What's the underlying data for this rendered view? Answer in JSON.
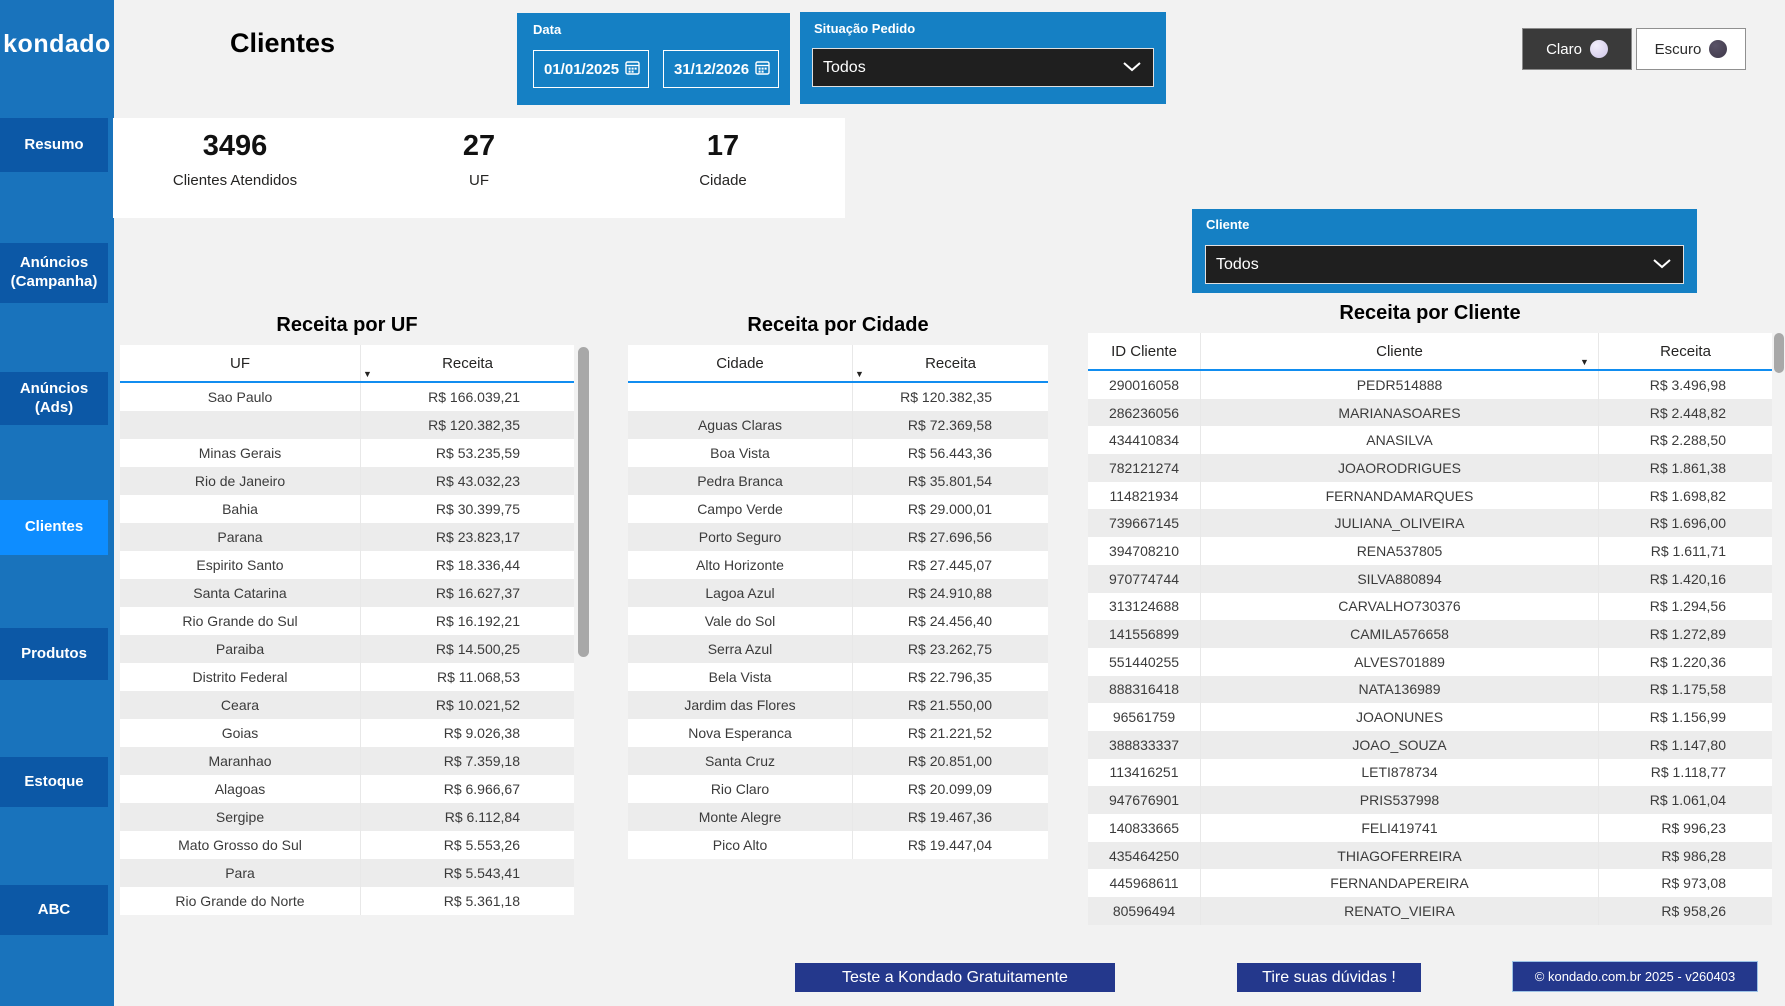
{
  "sidebar": {
    "logo": "kondado",
    "items": [
      {
        "label": "Resumo",
        "active": false
      },
      {
        "label": "Anúncios (Campanha)",
        "active": false
      },
      {
        "label": "Anúncios (Ads)",
        "active": false
      },
      {
        "label": "Clientes",
        "active": true
      },
      {
        "label": "Produtos",
        "active": false
      },
      {
        "label": "Estoque",
        "active": false
      },
      {
        "label": "ABC",
        "active": false
      }
    ]
  },
  "header": {
    "title": "Clientes"
  },
  "filters": {
    "data": {
      "label": "Data",
      "start": "01/01/2025",
      "end": "31/12/2026"
    },
    "situacao": {
      "label": "Situação Pedido",
      "value": "Todos"
    },
    "cliente": {
      "label": "Cliente",
      "value": "Todos"
    }
  },
  "theme": {
    "claro": "Claro",
    "escuro": "Escuro"
  },
  "kpis": [
    {
      "value": "3496",
      "label": "Clientes Atendidos"
    },
    {
      "value": "27",
      "label": "UF"
    },
    {
      "value": "17",
      "label": "Cidade"
    }
  ],
  "tables": {
    "uf": {
      "title": "Receita por UF",
      "columns": [
        "UF",
        "Receita"
      ],
      "rows": [
        [
          "Sao Paulo",
          "R$ 166.039,21"
        ],
        [
          "",
          "R$ 120.382,35"
        ],
        [
          "Minas Gerais",
          "R$ 53.235,59"
        ],
        [
          "Rio de Janeiro",
          "R$ 43.032,23"
        ],
        [
          "Bahia",
          "R$ 30.399,75"
        ],
        [
          "Parana",
          "R$ 23.823,17"
        ],
        [
          "Espirito Santo",
          "R$ 18.336,44"
        ],
        [
          "Santa Catarina",
          "R$ 16.627,37"
        ],
        [
          "Rio Grande do Sul",
          "R$ 16.192,21"
        ],
        [
          "Paraiba",
          "R$ 14.500,25"
        ],
        [
          "Distrito Federal",
          "R$ 11.068,53"
        ],
        [
          "Ceara",
          "R$ 10.021,52"
        ],
        [
          "Goias",
          "R$ 9.026,38"
        ],
        [
          "Maranhao",
          "R$ 7.359,18"
        ],
        [
          "Alagoas",
          "R$ 6.966,67"
        ],
        [
          "Sergipe",
          "R$ 6.112,84"
        ],
        [
          "Mato Grosso do Sul",
          "R$ 5.553,26"
        ],
        [
          "Para",
          "R$ 5.543,41"
        ],
        [
          "Rio Grande do Norte",
          "R$ 5.361,18"
        ]
      ]
    },
    "cidade": {
      "title": "Receita por Cidade",
      "columns": [
        "Cidade",
        "Receita"
      ],
      "rows": [
        [
          "",
          "R$ 120.382,35"
        ],
        [
          "Aguas Claras",
          "R$ 72.369,58"
        ],
        [
          "Boa Vista",
          "R$ 56.443,36"
        ],
        [
          "Pedra Branca",
          "R$ 35.801,54"
        ],
        [
          "Campo Verde",
          "R$ 29.000,01"
        ],
        [
          "Porto Seguro",
          "R$ 27.696,56"
        ],
        [
          "Alto Horizonte",
          "R$ 27.445,07"
        ],
        [
          "Lagoa Azul",
          "R$ 24.910,88"
        ],
        [
          "Vale do Sol",
          "R$ 24.456,40"
        ],
        [
          "Serra Azul",
          "R$ 23.262,75"
        ],
        [
          "Bela Vista",
          "R$ 22.796,35"
        ],
        [
          "Jardim das Flores",
          "R$ 21.550,00"
        ],
        [
          "Nova Esperanca",
          "R$ 21.221,52"
        ],
        [
          "Santa Cruz",
          "R$ 20.851,00"
        ],
        [
          "Rio Claro",
          "R$ 20.099,09"
        ],
        [
          "Monte Alegre",
          "R$ 19.467,36"
        ],
        [
          "Pico Alto",
          "R$ 19.447,04"
        ]
      ]
    },
    "cliente": {
      "title": "Receita por Cliente",
      "columns": [
        "ID Cliente",
        "Cliente",
        "Receita"
      ],
      "rows": [
        [
          "290016058",
          "PEDR514888",
          "R$ 3.496,98"
        ],
        [
          "286236056",
          "MARIANASOARES",
          "R$ 2.448,82"
        ],
        [
          "434410834",
          "ANASILVA",
          "R$ 2.288,50"
        ],
        [
          "782121274",
          "JOAORODRIGUES",
          "R$ 1.861,38"
        ],
        [
          "114821934",
          "FERNANDAMARQUES",
          "R$ 1.698,82"
        ],
        [
          "739667145",
          "JULIANA_OLIVEIRA",
          "R$ 1.696,00"
        ],
        [
          "394708210",
          "RENA537805",
          "R$ 1.611,71"
        ],
        [
          "970774744",
          "SILVA880894",
          "R$ 1.420,16"
        ],
        [
          "313124688",
          "CARVALHO730376",
          "R$ 1.294,56"
        ],
        [
          "141556899",
          "CAMILA576658",
          "R$ 1.272,89"
        ],
        [
          "551440255",
          "ALVES701889",
          "R$ 1.220,36"
        ],
        [
          "888316418",
          "NATA136989",
          "R$ 1.175,58"
        ],
        [
          "96561759",
          "JOAONUNES",
          "R$ 1.156,99"
        ],
        [
          "388833337",
          "JOAO_SOUZA",
          "R$ 1.147,80"
        ],
        [
          "113416251",
          "LETI878734",
          "R$ 1.118,77"
        ],
        [
          "947676901",
          "PRIS537998",
          "R$ 1.061,04"
        ],
        [
          "140833665",
          "FELI419741",
          "R$ 996,23"
        ],
        [
          "435464250",
          "THIAGOFERREIRA",
          "R$ 986,28"
        ],
        [
          "445968611",
          "FERNANDAPEREIRA",
          "R$ 973,08"
        ],
        [
          "80596494",
          "RENATO_VIEIRA",
          "R$ 958,26"
        ]
      ]
    }
  },
  "footer": {
    "cta": "Teste a Kondado Gratuitamente",
    "help": "Tire suas dúvidas !",
    "copyright": "© kondado.com.br 2025 - v260403"
  },
  "colors": {
    "sidebar": "#1973BC",
    "nav_item": "#0C58A6",
    "nav_active": "#0E8DFF",
    "filter_panel": "#1580C4",
    "dropdown_bg": "#1F1F1F",
    "table_accent": "#118DF0",
    "row_stripe": "#ECECEC",
    "footer_button": "#24388C",
    "background": "#F2F2F2"
  }
}
